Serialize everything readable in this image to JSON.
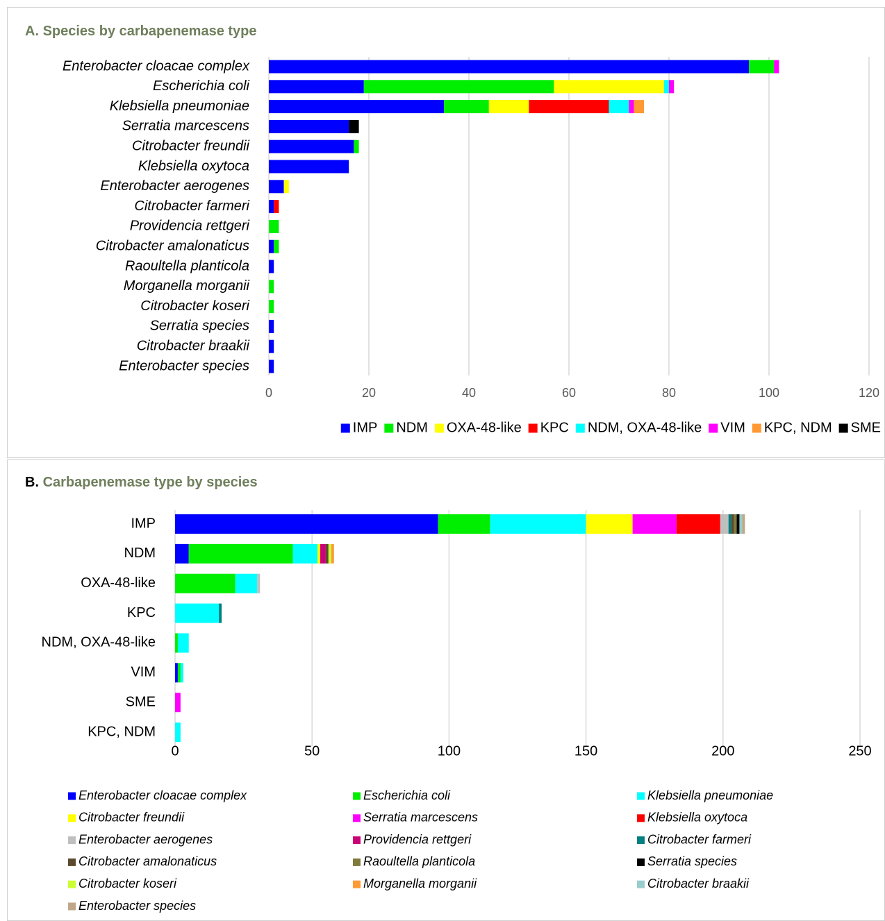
{
  "chart_data": [
    {
      "type": "bar",
      "orientation": "horizontal",
      "stacked": true,
      "label": "A.",
      "title": "Species by carbapenemase type",
      "categories": [
        "Enterobacter cloacae complex",
        "Escherichia coli",
        "Klebsiella pneumoniae",
        "Serratia marcescens",
        "Citrobacter freundii",
        "Klebsiella oxytoca",
        "Enterobacter aerogenes",
        "Citrobacter farmeri",
        "Providencia rettgeri",
        "Citrobacter amalonaticus",
        "Raoultella planticola",
        "Morganella morganii",
        "Citrobacter koseri",
        "Serratia species",
        "Citrobacter braakii",
        "Enterobacter species"
      ],
      "series": [
        {
          "name": "IMP",
          "color": "#0000ff",
          "values": [
            96,
            19,
            35,
            16,
            17,
            16,
            3,
            1,
            0,
            1,
            1,
            0,
            0,
            1,
            1,
            1
          ]
        },
        {
          "name": "NDM",
          "color": "#00ee00",
          "values": [
            5,
            38,
            9,
            0,
            1,
            0,
            0,
            0,
            2,
            1,
            0,
            1,
            1,
            0,
            0,
            0
          ]
        },
        {
          "name": "OXA-48-like",
          "color": "#ffff00",
          "values": [
            0,
            22,
            8,
            0,
            0,
            0,
            1,
            0,
            0,
            0,
            0,
            0,
            0,
            0,
            0,
            0
          ]
        },
        {
          "name": "KPC",
          "color": "#ff0000",
          "values": [
            0,
            0,
            16,
            0,
            0,
            0,
            0,
            1,
            0,
            0,
            0,
            0,
            0,
            0,
            0,
            0
          ]
        },
        {
          "name": "NDM, OXA-48-like",
          "color": "#00ffff",
          "values": [
            0,
            1,
            4,
            0,
            0,
            0,
            0,
            0,
            0,
            0,
            0,
            0,
            0,
            0,
            0,
            0
          ]
        },
        {
          "name": "VIM",
          "color": "#ff00ff",
          "values": [
            1,
            1,
            1,
            0,
            0,
            0,
            0,
            0,
            0,
            0,
            0,
            0,
            0,
            0,
            0,
            0
          ]
        },
        {
          "name": "KPC, NDM",
          "color": "#ff9933",
          "values": [
            0,
            0,
            2,
            0,
            0,
            0,
            0,
            0,
            0,
            0,
            0,
            0,
            0,
            0,
            0,
            0
          ]
        },
        {
          "name": "SME",
          "color": "#000000",
          "values": [
            0,
            0,
            0,
            2,
            0,
            0,
            0,
            0,
            0,
            0,
            0,
            0,
            0,
            0,
            0,
            0
          ]
        }
      ],
      "xlim": [
        0,
        120
      ],
      "xticks": [
        0,
        20,
        40,
        60,
        80,
        100,
        120
      ],
      "grid": true,
      "legend": "bottom"
    },
    {
      "type": "bar",
      "orientation": "horizontal",
      "stacked": true,
      "label": "B.",
      "title": "Carbapenemase type by species",
      "categories": [
        "IMP",
        "NDM",
        "OXA-48-like",
        "KPC",
        "NDM, OXA-48-like",
        "VIM",
        "SME",
        "KPC, NDM"
      ],
      "series": [
        {
          "name": "Enterobacter cloacae complex",
          "color": "#0000ff",
          "values": [
            96,
            5,
            0,
            0,
            0,
            1,
            0,
            0
          ]
        },
        {
          "name": "Escherichia coli",
          "color": "#00ee00",
          "values": [
            19,
            38,
            22,
            0,
            1,
            1,
            0,
            0
          ]
        },
        {
          "name": "Klebsiella pneumoniae",
          "color": "#00ffff",
          "values": [
            35,
            9,
            8,
            16,
            4,
            1,
            0,
            2
          ]
        },
        {
          "name": "Citrobacter freundii",
          "color": "#ffff00",
          "values": [
            17,
            1,
            0,
            0,
            0,
            0,
            0,
            0
          ]
        },
        {
          "name": "Serratia marcescens",
          "color": "#ff00ff",
          "values": [
            16,
            0,
            0,
            0,
            0,
            0,
            2,
            0
          ]
        },
        {
          "name": "Klebsiella oxytoca",
          "color": "#ff0000",
          "values": [
            16,
            0,
            0,
            0,
            0,
            0,
            0,
            0
          ]
        },
        {
          "name": "Enterobacter aerogenes",
          "color": "#bfbfbf",
          "values": [
            3,
            0,
            1,
            0,
            0,
            0,
            0,
            0
          ]
        },
        {
          "name": "Providencia rettgeri",
          "color": "#cc0077",
          "values": [
            0,
            2,
            0,
            0,
            0,
            0,
            0,
            0
          ]
        },
        {
          "name": "Citrobacter farmeri",
          "color": "#008080",
          "values": [
            1,
            0,
            0,
            1,
            0,
            0,
            0,
            0
          ]
        },
        {
          "name": "Citrobacter amalonaticus",
          "color": "#5c4a2e",
          "values": [
            1,
            1,
            0,
            0,
            0,
            0,
            0,
            0
          ]
        },
        {
          "name": "Raoultella planticola",
          "color": "#7f7a3a",
          "values": [
            1,
            0,
            0,
            0,
            0,
            0,
            0,
            0
          ]
        },
        {
          "name": "Serratia species",
          "color": "#000000",
          "values": [
            1,
            0,
            0,
            0,
            0,
            0,
            0,
            0
          ]
        },
        {
          "name": "Citrobacter koseri",
          "color": "#ccff33",
          "values": [
            0,
            1,
            0,
            0,
            0,
            0,
            0,
            0
          ]
        },
        {
          "name": "Morganella morganii",
          "color": "#ff9933",
          "values": [
            0,
            1,
            0,
            0,
            0,
            0,
            0,
            0
          ]
        },
        {
          "name": "Citrobacter braakii",
          "color": "#99cccc",
          "values": [
            1,
            0,
            0,
            0,
            0,
            0,
            0,
            0
          ]
        },
        {
          "name": "Enterobacter species",
          "color": "#bfa88a",
          "values": [
            1,
            0,
            0,
            0,
            0,
            0,
            0,
            0
          ]
        }
      ],
      "xlim": [
        0,
        250
      ],
      "xticks": [
        0,
        50,
        100,
        150,
        200,
        250
      ],
      "grid": true,
      "legend": "bottom"
    }
  ]
}
